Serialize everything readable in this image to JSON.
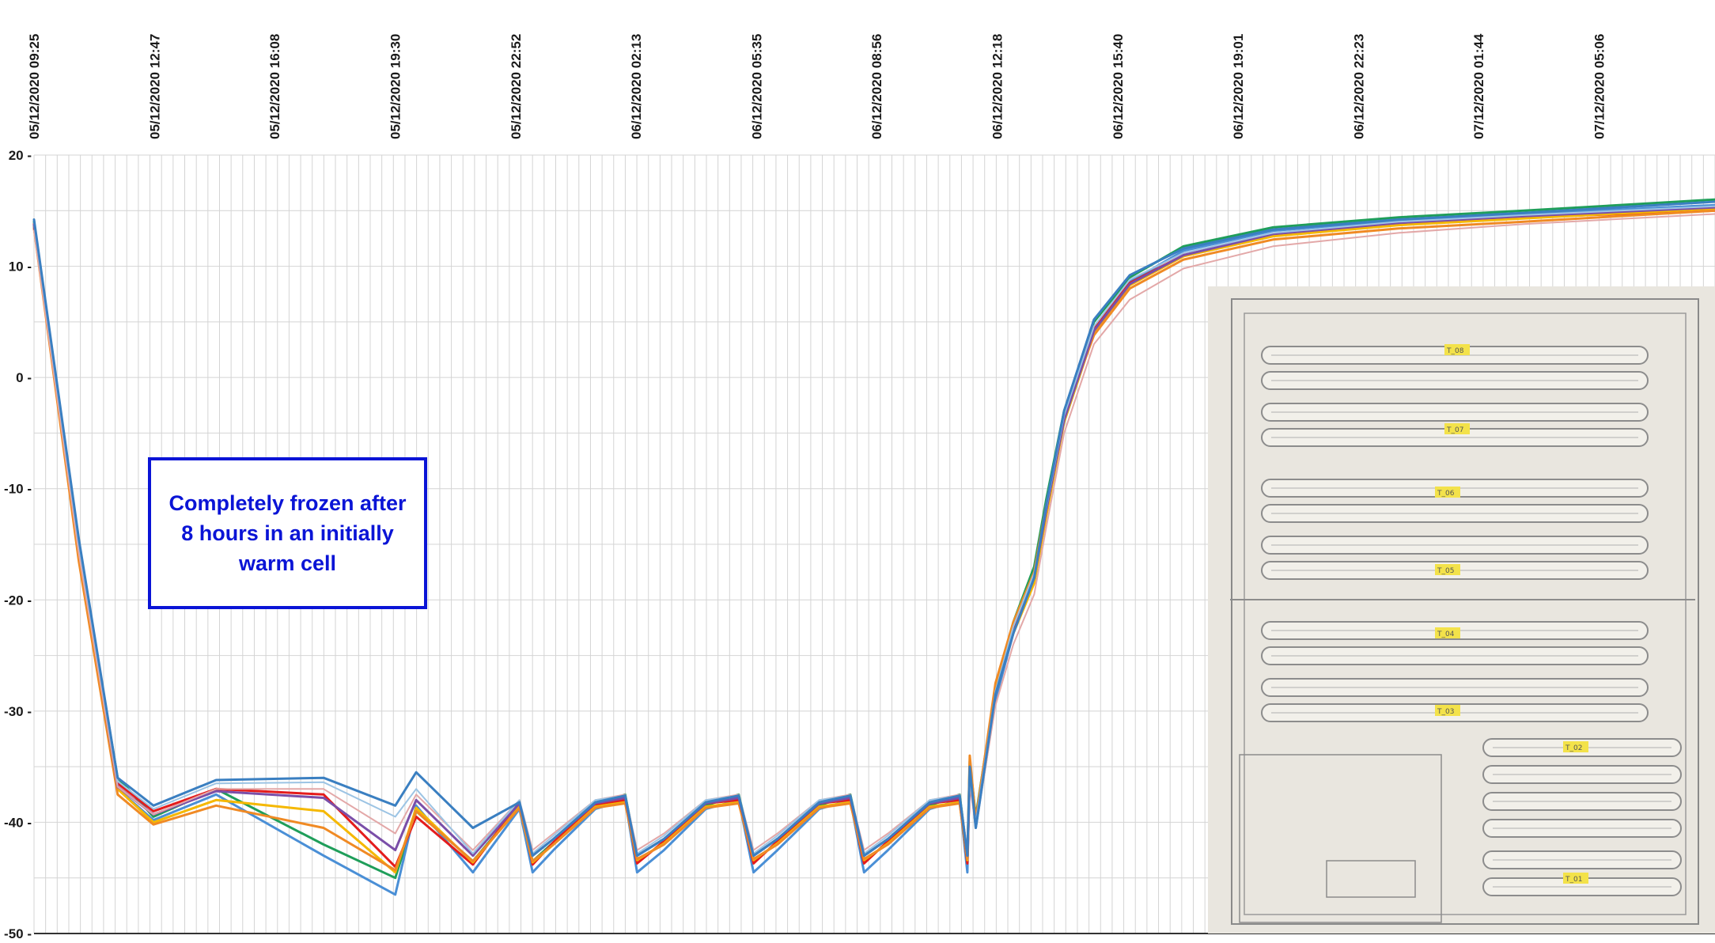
{
  "chart_data": {
    "type": "line",
    "title": "",
    "xlabel": "",
    "ylabel": "",
    "x_tick_labels": [
      "05/12/2020 09:25",
      "05/12/2020 12:47",
      "05/12/2020 16:08",
      "05/12/2020 19:30",
      "05/12/2020 22:52",
      "06/12/2020 02:13",
      "06/12/2020 05:35",
      "06/12/2020 08:56",
      "06/12/2020 12:18",
      "06/12/2020 15:40",
      "06/12/2020 19:01",
      "06/12/2020 22:23",
      "07/12/2020 01:44",
      "07/12/2020 05:06"
    ],
    "y_tick_labels": [
      "20 -",
      "10 -",
      "0 -",
      "-10 -",
      "-20 -",
      "-30 -",
      "-40 -",
      "-50 -"
    ],
    "y_ticks": [
      20,
      10,
      0,
      -10,
      -20,
      -30,
      -40,
      -50
    ],
    "ylim": [
      -50,
      20
    ],
    "xlim": [
      "05/12/2020 09:25",
      "07/12/2020 08:20"
    ],
    "grid": true,
    "series_colors": [
      "#1f9e5a",
      "#4a8fd6",
      "#e41c1c",
      "#f5b800",
      "#f08a24",
      "#7a4ea8",
      "#e3a8a8",
      "#9cc4e4",
      "#3a7fc1"
    ],
    "series": [
      {
        "x": [
          "05/12/2020 09:25",
          "05/12/2020 10:40",
          "05/12/2020 11:45",
          "05/12/2020 12:45",
          "05/12/2020 14:30",
          "05/12/2020 17:30",
          "05/12/2020 19:30",
          "05/12/2020 20:05",
          "05/12/2020 21:40",
          "05/12/2020 22:58",
          "05/12/2020 23:20",
          "05/12/2020 23:55",
          "06/12/2020 01:05",
          "06/12/2020 01:55",
          "06/12/2020 02:15",
          "06/12/2020 03:00",
          "06/12/2020 04:10",
          "06/12/2020 05:05",
          "06/12/2020 05:30",
          "06/12/2020 06:10",
          "06/12/2020 07:20",
          "06/12/2020 08:12",
          "06/12/2020 08:35",
          "06/12/2020 09:15",
          "06/12/2020 10:25",
          "06/12/2020 11:15",
          "06/12/2020 11:28",
          "06/12/2020 11:32",
          "06/12/2020 11:42",
          "06/12/2020 12:15",
          "06/12/2020 12:45",
          "06/12/2020 13:20",
          "06/12/2020 13:40",
          "06/12/2020 14:10",
          "06/12/2020 15:00",
          "06/12/2020 16:00",
          "06/12/2020 17:30",
          "06/12/2020 20:00",
          "06/12/2020 23:30",
          "07/12/2020 03:00",
          "07/12/2020 08:20"
        ],
        "y": [
          14,
          -15,
          -36,
          -39.5,
          -37,
          -42,
          -45,
          -39,
          -43.5,
          -38.5,
          -43.5,
          -41.8,
          -38.5,
          -37.5,
          -43,
          -41.5,
          -38.5,
          -37.5,
          -43,
          -41.5,
          -38.5,
          -37.5,
          -43,
          -41.5,
          -38.5,
          -37.5,
          -43,
          -34.5,
          -39.5,
          -28,
          -22,
          -17,
          -11,
          -3,
          5,
          9,
          11.8,
          13.5,
          14.4,
          15,
          16
        ]
      },
      {
        "x": [
          "05/12/2020 09:25",
          "05/12/2020 10:40",
          "05/12/2020 11:45",
          "05/12/2020 12:45",
          "05/12/2020 14:30",
          "05/12/2020 17:30",
          "05/12/2020 19:30",
          "05/12/2020 20:05",
          "05/12/2020 21:40",
          "05/12/2020 22:58",
          "05/12/2020 23:20",
          "05/12/2020 23:55",
          "06/12/2020 01:05",
          "06/12/2020 01:55",
          "06/12/2020 02:15",
          "06/12/2020 03:00",
          "06/12/2020 04:10",
          "06/12/2020 05:05",
          "06/12/2020 05:30",
          "06/12/2020 06:10",
          "06/12/2020 07:20",
          "06/12/2020 08:12",
          "06/12/2020 08:35",
          "06/12/2020 09:15",
          "06/12/2020 10:25",
          "06/12/2020 11:15",
          "06/12/2020 11:28",
          "06/12/2020 11:32",
          "06/12/2020 11:42",
          "06/12/2020 12:15",
          "06/12/2020 12:45",
          "06/12/2020 13:20",
          "06/12/2020 13:40",
          "06/12/2020 14:10",
          "06/12/2020 15:00",
          "06/12/2020 16:00",
          "06/12/2020 17:30",
          "06/12/2020 20:00",
          "06/12/2020 23:30",
          "07/12/2020 03:00",
          "07/12/2020 08:20"
        ],
        "y": [
          13.5,
          -16,
          -37,
          -39.8,
          -37.5,
          -43,
          -46.5,
          -38.5,
          -44.5,
          -38.8,
          -44.5,
          -42.5,
          -38.8,
          -38,
          -44.5,
          -42.5,
          -38.8,
          -38,
          -44.5,
          -42.5,
          -38.8,
          -38,
          -44.5,
          -42.5,
          -38.8,
          -38,
          -44.5,
          -35,
          -40.5,
          -29,
          -23,
          -18,
          -12,
          -4,
          4,
          8.6,
          11.4,
          13.2,
          14.1,
          14.7,
          15.5
        ]
      },
      {
        "x": [
          "05/12/2020 09:25",
          "05/12/2020 10:40",
          "05/12/2020 11:45",
          "05/12/2020 12:45",
          "05/12/2020 14:30",
          "05/12/2020 17:30",
          "05/12/2020 19:30",
          "05/12/2020 20:05",
          "05/12/2020 21:40",
          "05/12/2020 22:58",
          "05/12/2020 23:20",
          "05/12/2020 23:55",
          "06/12/2020 01:05",
          "06/12/2020 01:55",
          "06/12/2020 02:15",
          "06/12/2020 03:00",
          "06/12/2020 04:10",
          "06/12/2020 05:05",
          "06/12/2020 05:30",
          "06/12/2020 06:10",
          "06/12/2020 07:20",
          "06/12/2020 08:12",
          "06/12/2020 08:35",
          "06/12/2020 09:15",
          "06/12/2020 10:25",
          "06/12/2020 11:15",
          "06/12/2020 11:28",
          "06/12/2020 11:32",
          "06/12/2020 11:42",
          "06/12/2020 12:15",
          "06/12/2020 12:45",
          "06/12/2020 13:20",
          "06/12/2020 13:40",
          "06/12/2020 14:10",
          "06/12/2020 15:00",
          "06/12/2020 16:00",
          "06/12/2020 17:30",
          "06/12/2020 20:00",
          "06/12/2020 23:30",
          "07/12/2020 03:00",
          "07/12/2020 08:20"
        ],
        "y": [
          13.8,
          -15,
          -36.5,
          -39,
          -37,
          -37.5,
          -44,
          -39.5,
          -43.8,
          -38.2,
          -43.8,
          -41.8,
          -38.4,
          -38,
          -43.7,
          -41.7,
          -38.3,
          -38,
          -43.7,
          -41.7,
          -38.3,
          -38,
          -43.7,
          -41.7,
          -38.3,
          -38,
          -43.7,
          -36,
          -40,
          -28.5,
          -22.5,
          -18,
          -12,
          -3.5,
          4.5,
          8.5,
          11,
          12.8,
          13.8,
          14.4,
          15
        ]
      },
      {
        "x": [
          "05/12/2020 09:25",
          "05/12/2020 10:40",
          "05/12/2020 11:45",
          "05/12/2020 12:45",
          "05/12/2020 14:30",
          "05/12/2020 17:30",
          "05/12/2020 19:30",
          "05/12/2020 20:05",
          "05/12/2020 21:40",
          "05/12/2020 22:58",
          "05/12/2020 23:20",
          "05/12/2020 23:55",
          "06/12/2020 01:05",
          "06/12/2020 01:55",
          "06/12/2020 02:15",
          "06/12/2020 03:00",
          "06/12/2020 04:10",
          "06/12/2020 05:05",
          "06/12/2020 05:30",
          "06/12/2020 06:10",
          "06/12/2020 07:20",
          "06/12/2020 08:12",
          "06/12/2020 08:35",
          "06/12/2020 09:15",
          "06/12/2020 10:25",
          "06/12/2020 11:15",
          "06/12/2020 11:28",
          "06/12/2020 11:32",
          "06/12/2020 11:42",
          "06/12/2020 12:15",
          "06/12/2020 12:45",
          "06/12/2020 13:20",
          "06/12/2020 13:40",
          "06/12/2020 14:10",
          "06/12/2020 15:00",
          "06/12/2020 16:00",
          "06/12/2020 17:30",
          "06/12/2020 20:00",
          "06/12/2020 23:30",
          "07/12/2020 03:00",
          "07/12/2020 08:20"
        ],
        "y": [
          13.6,
          -15.5,
          -37,
          -40,
          -38,
          -39,
          -44.5,
          -38.7,
          -43.6,
          -38.6,
          -43.6,
          -42,
          -38.6,
          -38.2,
          -43.4,
          -41.9,
          -38.6,
          -38.2,
          -43.4,
          -41.9,
          -38.6,
          -38.2,
          -43.4,
          -41.9,
          -38.6,
          -38.2,
          -43.4,
          -35.5,
          -40,
          -28,
          -23,
          -18.5,
          -12.5,
          -4,
          4,
          8.3,
          10.9,
          12.7,
          13.7,
          14.3,
          15.2
        ]
      },
      {
        "x": [
          "05/12/2020 09:25",
          "05/12/2020 10:40",
          "05/12/2020 11:45",
          "05/12/2020 12:45",
          "05/12/2020 14:30",
          "05/12/2020 17:30",
          "05/12/2020 19:30",
          "05/12/2020 20:05",
          "05/12/2020 21:40",
          "05/12/2020 22:58",
          "05/12/2020 23:20",
          "05/12/2020 23:55",
          "06/12/2020 01:05",
          "06/12/2020 01:55",
          "06/12/2020 02:15",
          "06/12/2020 03:00",
          "06/12/2020 04:10",
          "06/12/2020 05:05",
          "06/12/2020 05:30",
          "06/12/2020 06:10",
          "06/12/2020 07:20",
          "06/12/2020 08:12",
          "06/12/2020 08:35",
          "06/12/2020 09:15",
          "06/12/2020 10:25",
          "06/12/2020 11:15",
          "06/12/2020 11:28",
          "06/12/2020 11:32",
          "06/12/2020 11:42",
          "06/12/2020 12:15",
          "06/12/2020 12:45",
          "06/12/2020 13:20",
          "06/12/2020 13:40",
          "06/12/2020 14:10",
          "06/12/2020 15:00",
          "06/12/2020 16:00",
          "06/12/2020 17:30",
          "06/12/2020 20:00",
          "06/12/2020 23:30",
          "07/12/2020 03:00",
          "07/12/2020 08:20"
        ],
        "y": [
          13.4,
          -16.5,
          -37.5,
          -40.2,
          -38.5,
          -40.5,
          -44.3,
          -39,
          -43.5,
          -38.7,
          -43.5,
          -42,
          -38.7,
          -38.3,
          -43.3,
          -42,
          -38.7,
          -38.3,
          -43.3,
          -42,
          -38.7,
          -38.3,
          -43.3,
          -42,
          -38.7,
          -38.3,
          -43.3,
          -34,
          -39.8,
          -27.5,
          -22,
          -17.5,
          -11.5,
          -3.5,
          3.8,
          8,
          10.6,
          12.4,
          13.4,
          14,
          15
        ]
      },
      {
        "x": [
          "05/12/2020 09:25",
          "05/12/2020 10:40",
          "05/12/2020 11:45",
          "05/12/2020 12:45",
          "05/12/2020 14:30",
          "05/12/2020 17:30",
          "05/12/2020 19:30",
          "05/12/2020 20:05",
          "05/12/2020 21:40",
          "05/12/2020 22:58",
          "05/12/2020 23:20",
          "05/12/2020 23:55",
          "06/12/2020 01:05",
          "06/12/2020 01:55",
          "06/12/2020 02:15",
          "06/12/2020 03:00",
          "06/12/2020 04:10",
          "06/12/2020 05:05",
          "06/12/2020 05:30",
          "06/12/2020 06:10",
          "06/12/2020 07:20",
          "06/12/2020 08:12",
          "06/12/2020 08:35",
          "06/12/2020 09:15",
          "06/12/2020 10:25",
          "06/12/2020 11:15",
          "06/12/2020 11:28",
          "06/12/2020 11:32",
          "06/12/2020 11:42",
          "06/12/2020 12:15",
          "06/12/2020 12:45",
          "06/12/2020 13:20",
          "06/12/2020 13:40",
          "06/12/2020 14:10",
          "06/12/2020 15:00",
          "06/12/2020 16:00",
          "06/12/2020 17:30",
          "06/12/2020 20:00",
          "06/12/2020 23:30",
          "07/12/2020 03:00",
          "07/12/2020 08:20"
        ],
        "y": [
          13.7,
          -15.2,
          -36.8,
          -39.3,
          -37.2,
          -37.8,
          -42.5,
          -38,
          -43,
          -38.3,
          -43,
          -41.5,
          -38.3,
          -37.8,
          -43,
          -41.5,
          -38.3,
          -37.8,
          -43,
          -41.5,
          -38.3,
          -37.8,
          -43,
          -41.5,
          -38.3,
          -37.8,
          -43,
          -36,
          -40.2,
          -28.5,
          -23,
          -18,
          -12,
          -3.8,
          4.2,
          8.4,
          11,
          12.9,
          13.9,
          14.5,
          15.3
        ]
      },
      {
        "x": [
          "05/12/2020 09:25",
          "05/12/2020 10:40",
          "05/12/2020 11:45",
          "05/12/2020 12:45",
          "05/12/2020 14:30",
          "05/12/2020 17:30",
          "05/12/2020 19:30",
          "05/12/2020 20:05",
          "05/12/2020 21:40",
          "05/12/2020 22:58",
          "05/12/2020 23:20",
          "05/12/2020 23:55",
          "06/12/2020 01:05",
          "06/12/2020 01:55",
          "06/12/2020 02:15",
          "06/12/2020 03:00",
          "06/12/2020 04:10",
          "06/12/2020 05:05",
          "06/12/2020 05:30",
          "06/12/2020 06:10",
          "06/12/2020 07:20",
          "06/12/2020 08:12",
          "06/12/2020 08:35",
          "06/12/2020 09:15",
          "06/12/2020 10:25",
          "06/12/2020 11:15",
          "06/12/2020 11:28",
          "06/12/2020 11:32",
          "06/12/2020 11:42",
          "06/12/2020 12:15",
          "06/12/2020 12:45",
          "06/12/2020 13:20",
          "06/12/2020 13:40",
          "06/12/2020 14:10",
          "06/12/2020 15:00",
          "06/12/2020 16:00",
          "06/12/2020 17:30",
          "06/12/2020 20:00",
          "06/12/2020 23:30",
          "07/12/2020 03:00",
          "07/12/2020 08:20"
        ],
        "y": [
          13.2,
          -15.8,
          -36.8,
          -39.3,
          -37,
          -37,
          -41,
          -37.5,
          -42.5,
          -38,
          -42.5,
          -41,
          -38,
          -37.5,
          -42.5,
          -41,
          -38,
          -37.5,
          -42.5,
          -41,
          -38,
          -37.5,
          -42.5,
          -41,
          -38,
          -37.5,
          -42.5,
          -36.5,
          -40.5,
          -29.5,
          -24,
          -19.5,
          -13.5,
          -5,
          3,
          7,
          9.8,
          11.8,
          13,
          13.8,
          14.7
        ]
      },
      {
        "x": [
          "05/12/2020 09:25",
          "05/12/2020 10:40",
          "05/12/2020 11:45",
          "05/12/2020 12:45",
          "05/12/2020 14:30",
          "05/12/2020 17:30",
          "05/12/2020 19:30",
          "05/12/2020 20:05",
          "05/12/2020 21:40",
          "05/12/2020 22:58",
          "05/12/2020 23:20",
          "05/12/2020 23:55",
          "06/12/2020 01:05",
          "06/12/2020 01:55",
          "06/12/2020 02:15",
          "06/12/2020 03:00",
          "06/12/2020 04:10",
          "06/12/2020 05:05",
          "06/12/2020 05:30",
          "06/12/2020 06:10",
          "06/12/2020 07:20",
          "06/12/2020 08:12",
          "06/12/2020 08:35",
          "06/12/2020 09:15",
          "06/12/2020 10:25",
          "06/12/2020 11:15",
          "06/12/2020 11:28",
          "06/12/2020 11:32",
          "06/12/2020 11:42",
          "06/12/2020 12:15",
          "06/12/2020 12:45",
          "06/12/2020 13:20",
          "06/12/2020 13:40",
          "06/12/2020 14:10",
          "06/12/2020 15:00",
          "06/12/2020 16:00",
          "06/12/2020 17:30",
          "06/12/2020 20:00",
          "06/12/2020 23:30",
          "07/12/2020 03:00",
          "07/12/2020 08:20"
        ],
        "y": [
          13.9,
          -15,
          -36.3,
          -38.8,
          -36.5,
          -36.4,
          -39.5,
          -37,
          -42.8,
          -38,
          -42.8,
          -41.2,
          -38,
          -37.6,
          -42.8,
          -41.2,
          -38,
          -37.6,
          -42.8,
          -41.2,
          -38,
          -37.6,
          -42.8,
          -41.2,
          -38,
          -37.6,
          -42.8,
          -36,
          -40,
          -28.2,
          -22.4,
          -17.6,
          -11.8,
          -3.4,
          4.6,
          8.8,
          11.2,
          13,
          14,
          14.6,
          15.4
        ]
      },
      {
        "x": [
          "05/12/2020 09:25",
          "05/12/2020 10:40",
          "05/12/2020 11:45",
          "05/12/2020 12:45",
          "05/12/2020 14:30",
          "05/12/2020 17:30",
          "05/12/2020 19:30",
          "05/12/2020 20:05",
          "05/12/2020 21:40",
          "05/12/2020 22:58",
          "05/12/2020 23:20",
          "05/12/2020 23:55",
          "06/12/2020 01:05",
          "06/12/2020 01:55",
          "06/12/2020 02:15",
          "06/12/2020 03:00",
          "06/12/2020 04:10",
          "06/12/2020 05:05",
          "06/12/2020 05:30",
          "06/12/2020 06:10",
          "06/12/2020 07:20",
          "06/12/2020 08:12",
          "06/12/2020 08:35",
          "06/12/2020 09:15",
          "06/12/2020 10:25",
          "06/12/2020 11:15",
          "06/12/2020 11:28",
          "06/12/2020 11:32",
          "06/12/2020 11:42",
          "06/12/2020 12:15",
          "06/12/2020 12:45",
          "06/12/2020 13:20",
          "06/12/2020 13:40",
          "06/12/2020 14:10",
          "06/12/2020 15:00",
          "06/12/2020 16:00",
          "06/12/2020 17:30",
          "06/12/2020 20:00",
          "06/12/2020 23:30",
          "07/12/2020 03:00",
          "07/12/2020 08:20"
        ],
        "y": [
          14.2,
          -14.5,
          -36,
          -38.5,
          -36.2,
          -36,
          -38.5,
          -35.5,
          -40.5,
          -38.2,
          -43,
          -41.5,
          -38.2,
          -37.6,
          -43,
          -41.5,
          -38.2,
          -37.6,
          -43,
          -41.5,
          -38.2,
          -37.6,
          -43,
          -41.5,
          -38.2,
          -37.6,
          -43,
          -35,
          -40.5,
          -28.5,
          -23,
          -18,
          -11.5,
          -3,
          5.2,
          9.2,
          11.6,
          13.3,
          14.2,
          14.8,
          15.8
        ]
      }
    ]
  },
  "annotation": {
    "text": "Completely frozen after 8 hours in an initially warm cell",
    "border_color": "#0a14d6",
    "text_color": "#0a14d6"
  },
  "inset": {
    "sensor_labels": [
      "T_08",
      "T_07",
      "T_06",
      "T_05",
      "T_04",
      "T_03",
      "T_02",
      "T_01"
    ]
  }
}
